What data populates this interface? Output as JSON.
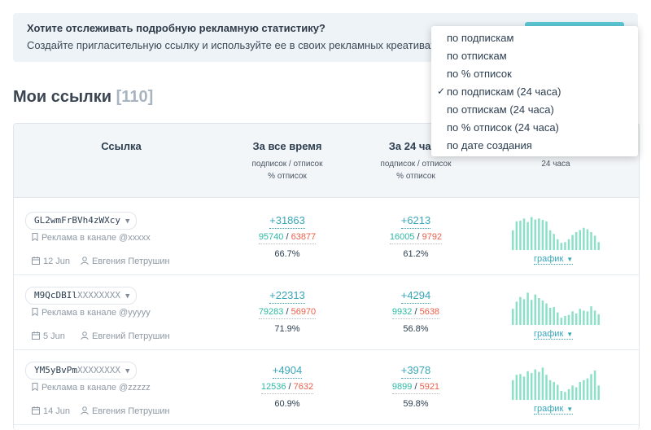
{
  "banner": {
    "title": "Хотите отслеживать подробную рекламную статистику?",
    "text": "Создайте пригласительную ссылку и используйте ее в своих рекламных креативах",
    "accent_color": "#5cc8d4"
  },
  "page": {
    "title": "Мои ссылки",
    "count": "[110]"
  },
  "table": {
    "col_link": "Ссылка",
    "col_all": "За все время",
    "col_all_sub1": "подписок / отписок",
    "col_all_sub2": "% отписок",
    "col_24": "За 24 часа",
    "col_24_sub1": "подписок / отписок",
    "col_24_sub2": "% отписок",
    "col_chart_sub": "24 часа"
  },
  "rows": [
    {
      "code_main": "GL2wmFrBVh4zWXcy",
      "code_rest": "",
      "channel": "Реклама в канале @xxxxx",
      "date": "12 Jun",
      "author": "Евгения Петрушин",
      "all_net": "+31863",
      "all_sub": "95740",
      "all_unsub": "63877",
      "all_pct": "66.7%",
      "d_net": "+6213",
      "d_sub": "16005",
      "d_unsub": "9792",
      "d_pct": "61.2%",
      "graph_label": "график",
      "bars": [
        0.55,
        0.8,
        0.82,
        0.88,
        0.78,
        0.92,
        0.85,
        0.88,
        0.84,
        0.8,
        0.55,
        0.45,
        0.3,
        0.2,
        0.22,
        0.3,
        0.42,
        0.5,
        0.56,
        0.62,
        0.58,
        0.5,
        0.4,
        0.22
      ]
    },
    {
      "code_main": "M9QcDBIl",
      "code_rest": "XXXXXXXX",
      "channel": "Реклама в канале @yyyyy",
      "date": "5 Jun",
      "author": "Евгений Петрушин",
      "all_net": "+22313",
      "all_sub": "79283",
      "all_unsub": "56970",
      "all_pct": "71.9%",
      "d_net": "+4294",
      "d_sub": "9932",
      "d_unsub": "5638",
      "d_pct": "56.8%",
      "graph_label": "график",
      "bars": [
        0.45,
        0.65,
        0.78,
        0.72,
        0.9,
        0.7,
        0.85,
        0.75,
        0.68,
        0.6,
        0.48,
        0.5,
        0.35,
        0.2,
        0.25,
        0.28,
        0.38,
        0.32,
        0.45,
        0.4,
        0.38,
        0.52,
        0.4,
        0.3
      ]
    },
    {
      "code_main": "YM5yBvPm",
      "code_rest": "XXXXXXXX",
      "channel": "Реклама в канале @zzzzz",
      "date": "14 Jun",
      "author": "Евгения Петрушин",
      "all_net": "+4904",
      "all_sub": "12536",
      "all_unsub": "7632",
      "all_pct": "60.9%",
      "d_net": "+3978",
      "d_sub": "9899",
      "d_unsub": "5921",
      "d_pct": "59.8%",
      "graph_label": "график",
      "bars": [
        0.55,
        0.7,
        0.72,
        0.65,
        0.8,
        0.75,
        0.85,
        0.78,
        0.9,
        0.7,
        0.55,
        0.5,
        0.42,
        0.25,
        0.22,
        0.3,
        0.4,
        0.35,
        0.5,
        0.55,
        0.6,
        0.72,
        0.82,
        0.4
      ]
    }
  ],
  "dropdown": {
    "items": [
      "по подпискам",
      "по отпискам",
      "по % отписок",
      "по подпискам (24 часа)",
      "по отпискам (24 часа)",
      "по % отписок (24 часа)",
      "по дате создания"
    ],
    "selected_index": 3,
    "check": "✓"
  },
  "colors": {
    "subscribe": "#2eb8a5",
    "unsubscribe": "#e8604c",
    "net": "#39a6b8",
    "bar": "#8de0c8"
  }
}
